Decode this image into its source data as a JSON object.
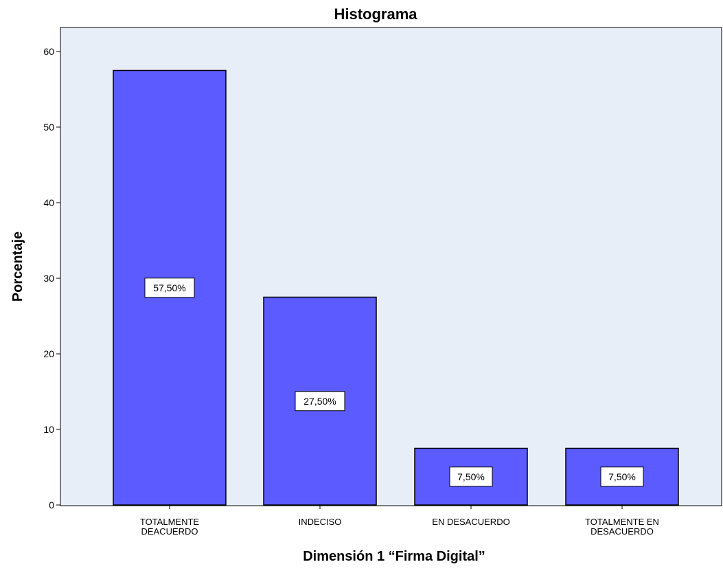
{
  "chart_data": {
    "type": "bar",
    "title": "Histograma",
    "xlabel": "Dimensión 1  “Firma Digital”",
    "ylabel": "Porcentaje",
    "categories": [
      [
        "TOTALMENTE",
        "DEACUERDO"
      ],
      [
        "INDECISO"
      ],
      [
        "EN DESACUERDO"
      ],
      [
        "TOTALMENTE EN",
        "DESACUERDO"
      ]
    ],
    "values": [
      57.5,
      27.5,
      7.5,
      7.5
    ],
    "data_labels": [
      "57,50%",
      "27,50%",
      "7,50%",
      "7,50%"
    ],
    "ylim": [
      0,
      60
    ],
    "yticks": [
      0,
      10,
      20,
      30,
      40,
      50,
      60
    ],
    "grid": false,
    "colors": {
      "bar": "#5b5bff",
      "plot_background": "#e8eef8",
      "bar_border": "#000000"
    }
  }
}
